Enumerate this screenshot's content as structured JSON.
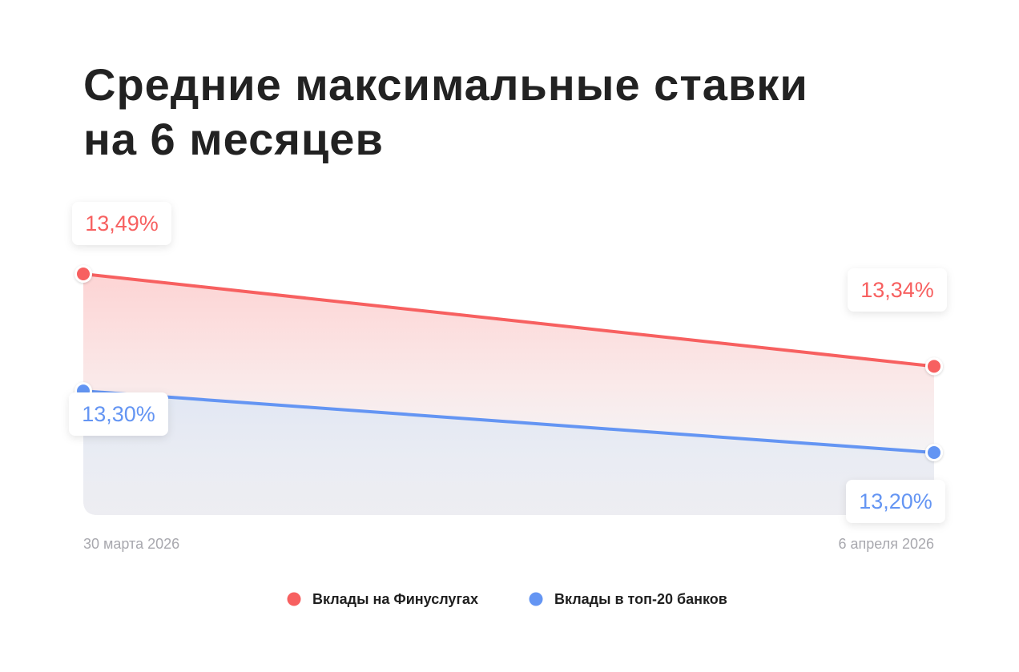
{
  "title": {
    "line1": "Средние максимальные ставки",
    "line2": "на 6 месяцев"
  },
  "colors": {
    "finuslugi": "#f76060",
    "top20": "#6495f3",
    "date_text": "#a8a8ae"
  },
  "chart_data": {
    "type": "area",
    "title": "Средние максимальные ставки на 6 месяцев",
    "x": [
      "30 марта 2026",
      "6 апреля 2026"
    ],
    "series": [
      {
        "name": "Вклады на Финуслугах",
        "values": [
          13.49,
          13.34
        ],
        "labels": [
          "13,49%",
          "13,34%"
        ],
        "color": "#f76060"
      },
      {
        "name": "Вклады в топ-20 банков",
        "values": [
          13.3,
          13.2
        ],
        "labels": [
          "13,30%",
          "13,20%"
        ],
        "color": "#6495f3"
      }
    ],
    "xlabel": "",
    "ylabel": "",
    "grid": false,
    "legend": "bottom-center"
  }
}
